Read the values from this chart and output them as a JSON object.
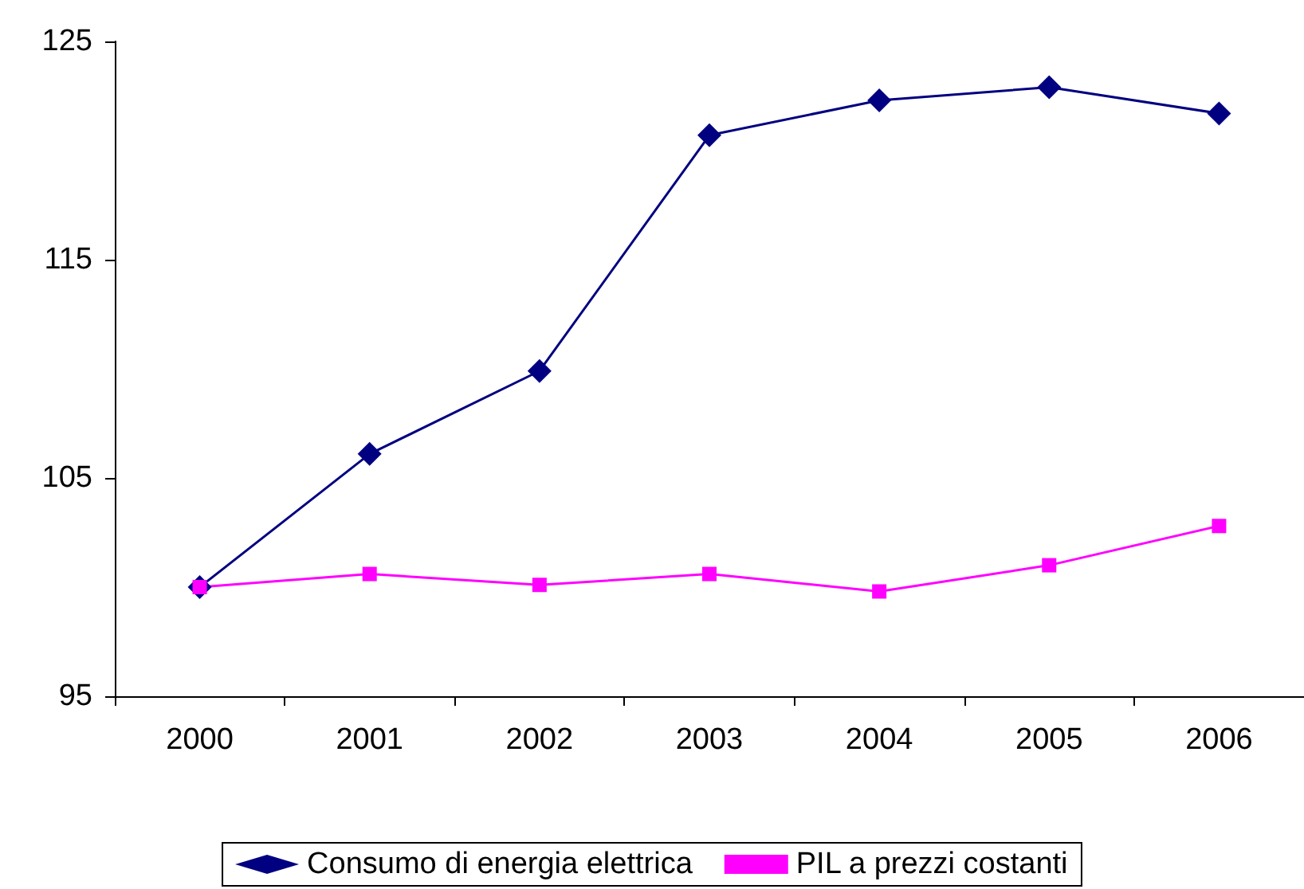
{
  "chart_data": {
    "type": "line",
    "categories": [
      "2000",
      "2001",
      "2002",
      "2003",
      "2004",
      "2005",
      "2006"
    ],
    "series": [
      {
        "name": "Consumo di energia elettrica",
        "color": "#000080",
        "marker": "diamond",
        "values": [
          100.0,
          106.1,
          109.9,
          120.7,
          122.3,
          122.9,
          121.7
        ]
      },
      {
        "name": "PIL a prezzi costanti",
        "color": "#ff00ff",
        "marker": "square",
        "values": [
          100.0,
          100.6,
          100.1,
          100.6,
          99.8,
          101.0,
          102.8
        ]
      }
    ],
    "ylim": [
      95,
      125
    ],
    "yticks": [
      95,
      105,
      115,
      125
    ],
    "grid": false,
    "legend": "bottom"
  }
}
